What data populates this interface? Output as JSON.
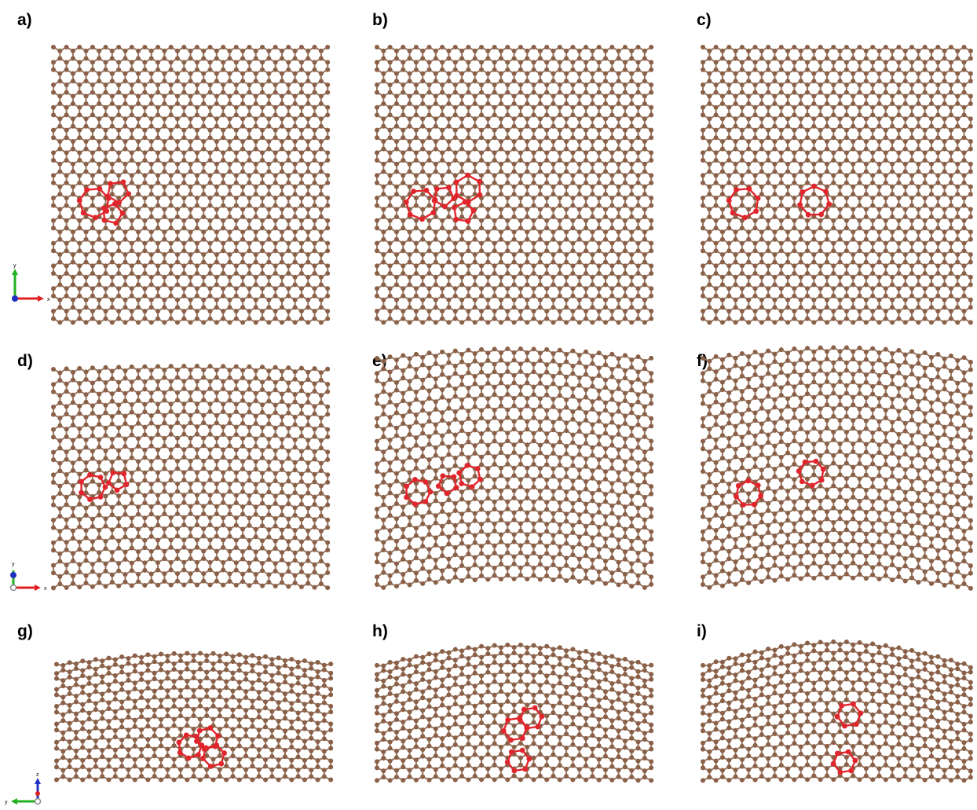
{
  "figure": {
    "panels": [
      {
        "label": "a)",
        "view": "top",
        "defect": "adjacent"
      },
      {
        "label": "b)",
        "view": "top",
        "defect": "separated"
      },
      {
        "label": "c)",
        "view": "top",
        "defect": "distant"
      },
      {
        "label": "d)",
        "view": "top-rippled",
        "defect": "adjacent"
      },
      {
        "label": "e)",
        "view": "top-rippled",
        "defect": "separated"
      },
      {
        "label": "f)",
        "view": "top-rippled",
        "defect": "distant"
      },
      {
        "label": "g)",
        "view": "side",
        "defect": "adjacent"
      },
      {
        "label": "h)",
        "view": "side",
        "defect": "separated"
      },
      {
        "label": "i)",
        "view": "side",
        "defect": "distant"
      }
    ],
    "axes_top": {
      "x": "x",
      "y": "y"
    },
    "axes_rippled": {
      "x": "x",
      "y": "y"
    },
    "axes_side": {
      "h": "y",
      "v": "z"
    },
    "colors": {
      "carbon": "#8a6048",
      "bond": "#9b7862",
      "defect": "#e0262c",
      "axis_x": "#e02020",
      "axis_y": "#20b020",
      "axis_z": "#2030c0"
    }
  }
}
